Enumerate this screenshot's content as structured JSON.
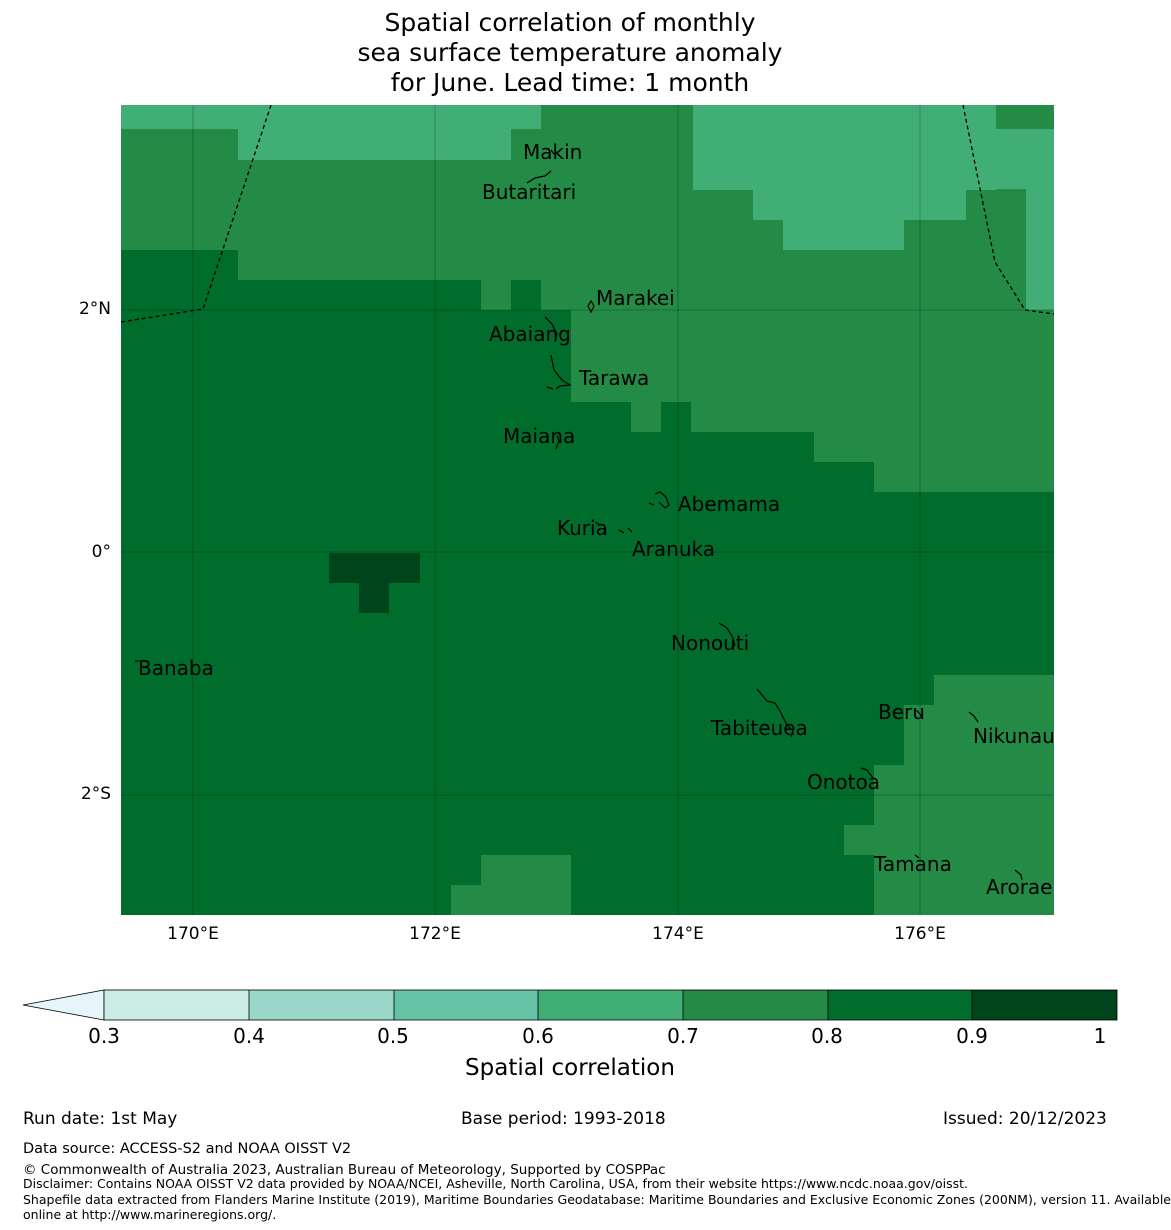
{
  "title": {
    "line1": "Spatial correlation of monthly",
    "line2": "sea surface temperature anomaly",
    "line3": "for June. Lead time: 1 month"
  },
  "map": {
    "lat_labels": [
      "2°N",
      "0°",
      "2°S"
    ],
    "lon_labels": [
      "170°E",
      "172°E",
      "174°E",
      "176°E"
    ],
    "places": [
      "Makin",
      "Butaritari",
      "Marakei",
      "Abaiang",
      "Tarawa",
      "Maiana",
      "Abemama",
      "Kuria",
      "Aranuka",
      "Banaba",
      "Nonouti",
      "Beru",
      "Tabiteuea",
      "Nikunau",
      "Onotoa",
      "Tamana",
      "Arorae"
    ]
  },
  "colorbar": {
    "ticks": [
      "0.3",
      "0.4",
      "0.5",
      "0.6",
      "0.7",
      "0.8",
      "0.9",
      "1"
    ],
    "title": "Spatial correlation",
    "colors": [
      "#e5f5f9",
      "#ccece6",
      "#99d8c9",
      "#66c2a4",
      "#41ae76",
      "#238b45",
      "#006d2c",
      "#00441b"
    ]
  },
  "footer": {
    "run_date": "Run date: 1st May",
    "base_period": "Base period: 1993-2018",
    "issued": "Issued: 20/12/2023",
    "data_source": "Data source: ACCESS-S2 and NOAA OISST V2",
    "copyright": "© Commonwealth of Australia 2023, Australian Bureau of Meteorology, Supported by COSPPac",
    "disclaimer": "Disclaimer: Contains NOAA OISST V2 data provided by NOAA/NCEI, Asheville, North Carolina, USA, from their website https://www.ncdc.noaa.gov/oisst.",
    "shapefile1": "Shapefile data extracted from Flanders Marine Institute (2019), Maritime Boundaries Geodatabase: Maritime Boundaries and Exclusive Economic Zones (200NM), version 11. Available",
    "shapefile2": "online at http://www.marineregions.org/."
  }
}
